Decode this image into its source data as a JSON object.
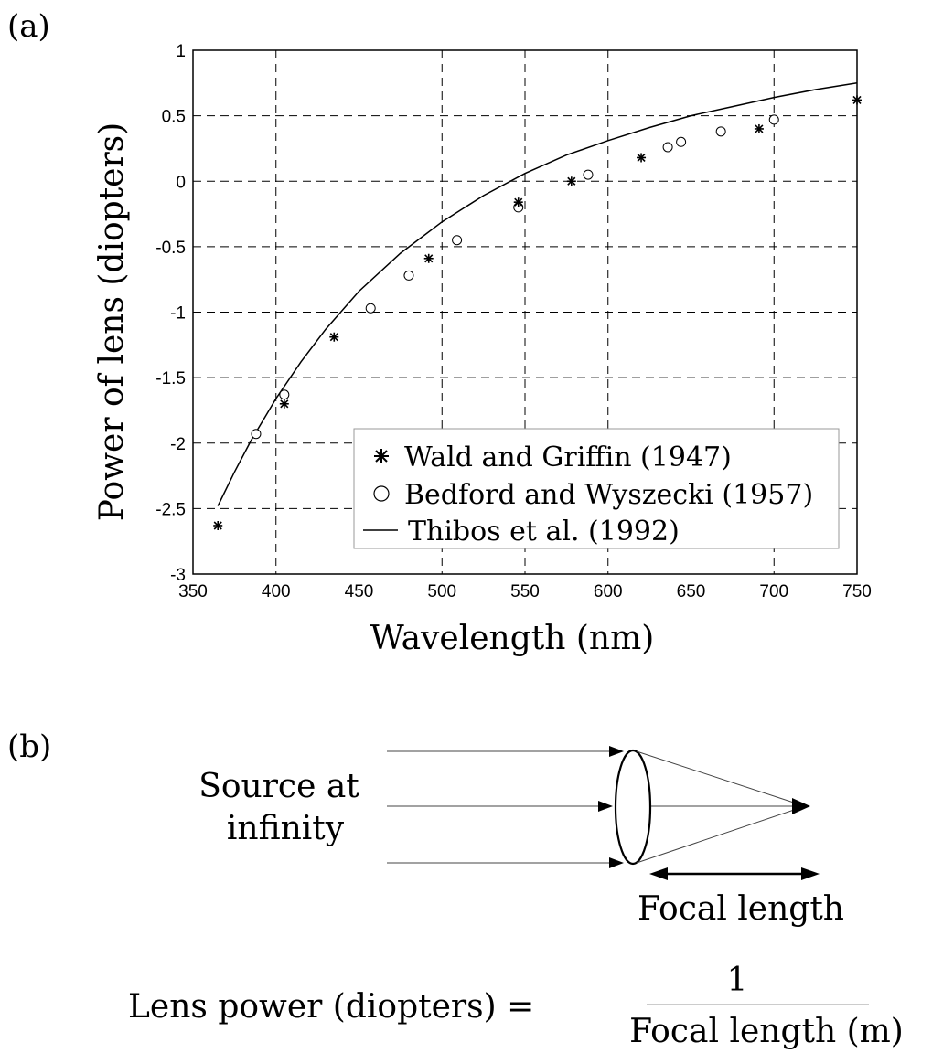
{
  "panel_a": {
    "label": "(a)"
  },
  "panel_b": {
    "label": "(b)",
    "source_line1": "Source at",
    "source_line2": "infinity",
    "focal_label": "Focal length",
    "formula_left": "Lens power (diopters) =",
    "formula_numerator": "1",
    "formula_denominator": "Focal length (m)"
  },
  "chart_data": {
    "type": "scatter",
    "title": "",
    "xlabel": "Wavelength (nm)",
    "ylabel": "Power of lens (diopters)",
    "xlim": [
      350,
      750
    ],
    "ylim": [
      -3,
      1
    ],
    "xticks": [
      350,
      400,
      450,
      500,
      550,
      600,
      650,
      700,
      750
    ],
    "xtick_labels": [
      "350",
      "400",
      "450",
      "500",
      "550",
      "600",
      "650",
      "700",
      "750"
    ],
    "yticks": [
      1,
      0.5,
      0,
      -0.5,
      -1,
      -1.5,
      -2,
      -2.5,
      -3
    ],
    "ytick_labels": [
      "1",
      "0.5",
      "0",
      "-0.5",
      "-1",
      "-1.5",
      "-2",
      "-2.5",
      "-3"
    ],
    "grid": true,
    "legend_position": "bottom-right",
    "series": [
      {
        "name": "Wald and Griffin (1947)",
        "marker": "asterisk",
        "x": [
          365,
          405,
          435,
          492,
          546,
          578,
          620,
          691,
          750
        ],
        "y": [
          -2.63,
          -1.7,
          -1.19,
          -0.59,
          -0.16,
          0.0,
          0.18,
          0.4,
          0.62
        ]
      },
      {
        "name": "Bedford and Wyszecki (1957)",
        "marker": "circle",
        "x": [
          388,
          405,
          457,
          480,
          509,
          546,
          588,
          636,
          644,
          668,
          700
        ],
        "y": [
          -1.93,
          -1.63,
          -0.97,
          -0.72,
          -0.45,
          -0.2,
          0.05,
          0.26,
          0.3,
          0.38,
          0.47
        ]
      },
      {
        "name": "Thibos et al. (1992)",
        "marker": "line",
        "x": [
          365,
          375,
          385,
          400,
          415,
          430,
          450,
          475,
          500,
          525,
          550,
          575,
          600,
          625,
          650,
          675,
          700,
          725,
          750
        ],
        "y": [
          -2.48,
          -2.22,
          -1.98,
          -1.66,
          -1.38,
          -1.13,
          -0.84,
          -0.55,
          -0.31,
          -0.11,
          0.06,
          0.2,
          0.31,
          0.41,
          0.5,
          0.57,
          0.64,
          0.7,
          0.75
        ]
      }
    ]
  }
}
